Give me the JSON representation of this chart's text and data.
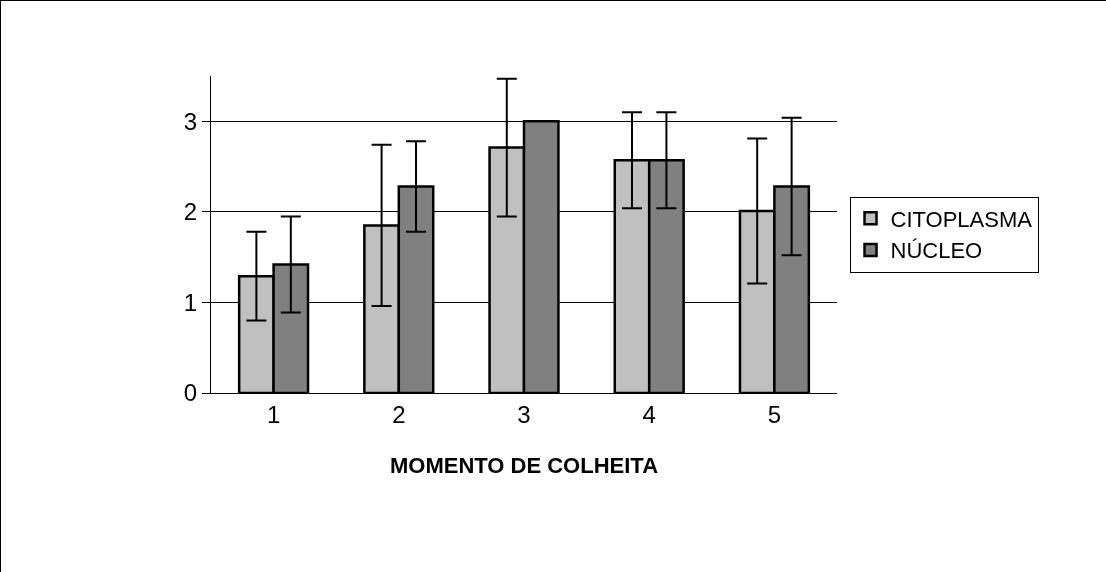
{
  "chart_data": {
    "type": "bar",
    "xlabel": "MOMENTO DE COLHEITA",
    "categories": [
      "1",
      "2",
      "3",
      "4",
      "5"
    ],
    "series": [
      {
        "name": "CITOPLASMA",
        "color": "#c0c0c0",
        "values": [
          1.29,
          1.85,
          2.71,
          2.57,
          2.01
        ],
        "errors": [
          0.49,
          0.89,
          0.76,
          0.53,
          0.8
        ]
      },
      {
        "name": "NÚCLEO",
        "color": "#808080",
        "values": [
          1.42,
          2.28,
          3.0,
          2.57,
          2.28
        ],
        "errors": [
          0.53,
          0.5,
          null,
          0.53,
          0.76
        ]
      }
    ],
    "ylim": [
      0,
      3.5
    ],
    "yticks": [
      0,
      1,
      2,
      3
    ],
    "grid": "y",
    "legend": "right"
  }
}
